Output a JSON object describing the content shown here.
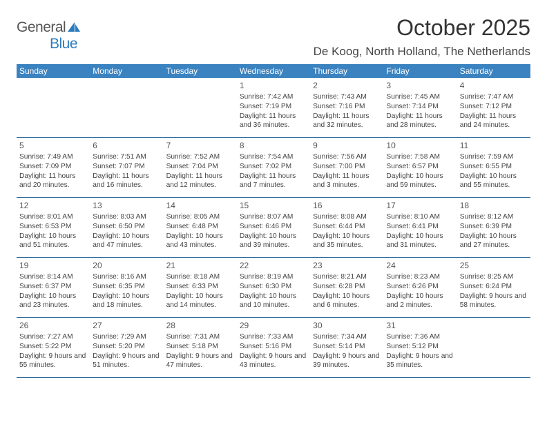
{
  "brand": {
    "part1": "General",
    "part2": "Blue"
  },
  "title": "October 2025",
  "location": "De Koog, North Holland, The Netherlands",
  "weekdays": [
    "Sunday",
    "Monday",
    "Tuesday",
    "Wednesday",
    "Thursday",
    "Friday",
    "Saturday"
  ],
  "colors": {
    "headerBg": "#3b83c0",
    "rowBorder": "#2f6d9f",
    "brandBlue": "#2b7bbd",
    "text": "#444"
  },
  "weeks": [
    [
      null,
      null,
      null,
      {
        "d": "1",
        "sr": "7:42 AM",
        "ss": "7:19 PM",
        "dl": "11 hours and 36 minutes."
      },
      {
        "d": "2",
        "sr": "7:43 AM",
        "ss": "7:16 PM",
        "dl": "11 hours and 32 minutes."
      },
      {
        "d": "3",
        "sr": "7:45 AM",
        "ss": "7:14 PM",
        "dl": "11 hours and 28 minutes."
      },
      {
        "d": "4",
        "sr": "7:47 AM",
        "ss": "7:12 PM",
        "dl": "11 hours and 24 minutes."
      }
    ],
    [
      {
        "d": "5",
        "sr": "7:49 AM",
        "ss": "7:09 PM",
        "dl": "11 hours and 20 minutes."
      },
      {
        "d": "6",
        "sr": "7:51 AM",
        "ss": "7:07 PM",
        "dl": "11 hours and 16 minutes."
      },
      {
        "d": "7",
        "sr": "7:52 AM",
        "ss": "7:04 PM",
        "dl": "11 hours and 12 minutes."
      },
      {
        "d": "8",
        "sr": "7:54 AM",
        "ss": "7:02 PM",
        "dl": "11 hours and 7 minutes."
      },
      {
        "d": "9",
        "sr": "7:56 AM",
        "ss": "7:00 PM",
        "dl": "11 hours and 3 minutes."
      },
      {
        "d": "10",
        "sr": "7:58 AM",
        "ss": "6:57 PM",
        "dl": "10 hours and 59 minutes."
      },
      {
        "d": "11",
        "sr": "7:59 AM",
        "ss": "6:55 PM",
        "dl": "10 hours and 55 minutes."
      }
    ],
    [
      {
        "d": "12",
        "sr": "8:01 AM",
        "ss": "6:53 PM",
        "dl": "10 hours and 51 minutes."
      },
      {
        "d": "13",
        "sr": "8:03 AM",
        "ss": "6:50 PM",
        "dl": "10 hours and 47 minutes."
      },
      {
        "d": "14",
        "sr": "8:05 AM",
        "ss": "6:48 PM",
        "dl": "10 hours and 43 minutes."
      },
      {
        "d": "15",
        "sr": "8:07 AM",
        "ss": "6:46 PM",
        "dl": "10 hours and 39 minutes."
      },
      {
        "d": "16",
        "sr": "8:08 AM",
        "ss": "6:44 PM",
        "dl": "10 hours and 35 minutes."
      },
      {
        "d": "17",
        "sr": "8:10 AM",
        "ss": "6:41 PM",
        "dl": "10 hours and 31 minutes."
      },
      {
        "d": "18",
        "sr": "8:12 AM",
        "ss": "6:39 PM",
        "dl": "10 hours and 27 minutes."
      }
    ],
    [
      {
        "d": "19",
        "sr": "8:14 AM",
        "ss": "6:37 PM",
        "dl": "10 hours and 23 minutes."
      },
      {
        "d": "20",
        "sr": "8:16 AM",
        "ss": "6:35 PM",
        "dl": "10 hours and 18 minutes."
      },
      {
        "d": "21",
        "sr": "8:18 AM",
        "ss": "6:33 PM",
        "dl": "10 hours and 14 minutes."
      },
      {
        "d": "22",
        "sr": "8:19 AM",
        "ss": "6:30 PM",
        "dl": "10 hours and 10 minutes."
      },
      {
        "d": "23",
        "sr": "8:21 AM",
        "ss": "6:28 PM",
        "dl": "10 hours and 6 minutes."
      },
      {
        "d": "24",
        "sr": "8:23 AM",
        "ss": "6:26 PM",
        "dl": "10 hours and 2 minutes."
      },
      {
        "d": "25",
        "sr": "8:25 AM",
        "ss": "6:24 PM",
        "dl": "9 hours and 58 minutes."
      }
    ],
    [
      {
        "d": "26",
        "sr": "7:27 AM",
        "ss": "5:22 PM",
        "dl": "9 hours and 55 minutes."
      },
      {
        "d": "27",
        "sr": "7:29 AM",
        "ss": "5:20 PM",
        "dl": "9 hours and 51 minutes."
      },
      {
        "d": "28",
        "sr": "7:31 AM",
        "ss": "5:18 PM",
        "dl": "9 hours and 47 minutes."
      },
      {
        "d": "29",
        "sr": "7:33 AM",
        "ss": "5:16 PM",
        "dl": "9 hours and 43 minutes."
      },
      {
        "d": "30",
        "sr": "7:34 AM",
        "ss": "5:14 PM",
        "dl": "9 hours and 39 minutes."
      },
      {
        "d": "31",
        "sr": "7:36 AM",
        "ss": "5:12 PM",
        "dl": "9 hours and 35 minutes."
      },
      null
    ]
  ],
  "labels": {
    "sunrise": "Sunrise: ",
    "sunset": "Sunset: ",
    "daylight": "Daylight: "
  }
}
